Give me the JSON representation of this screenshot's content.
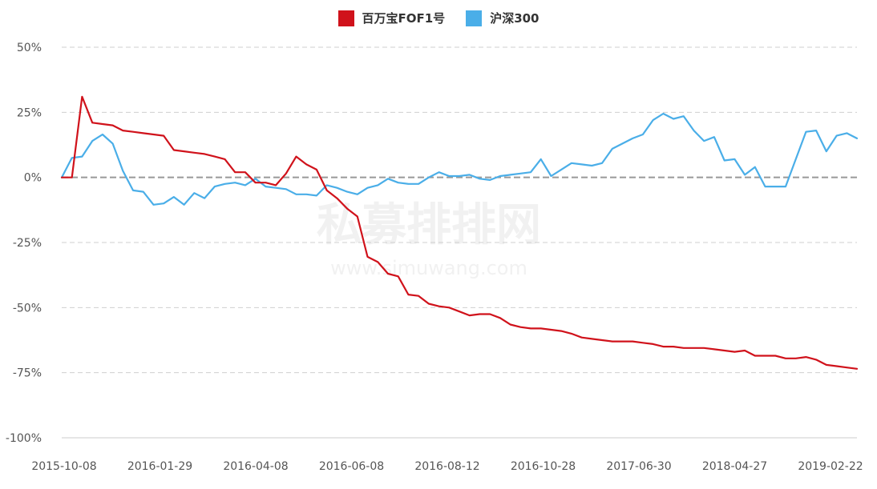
{
  "chart_data": {
    "type": "line",
    "title": "",
    "xlabel": "",
    "ylabel": "",
    "ylim": [
      -100,
      50
    ],
    "y_ticks": [
      50,
      25,
      0,
      -25,
      -50,
      -75,
      -100
    ],
    "y_tick_labels": [
      "50%",
      "25%",
      "0%",
      "-25%",
      "-50%",
      "-75%",
      "-100%"
    ],
    "x_tick_labels": [
      "2015-10-08",
      "2016-01-29",
      "2016-04-08",
      "2016-06-08",
      "2016-08-12",
      "2016-10-28",
      "2017-06-30",
      "2018-04-27",
      "2019-02-22"
    ],
    "legend_position": "top-center",
    "grid": "horizontal dashed",
    "series": [
      {
        "name": "百万宝FOF1号",
        "color": "#d0121b",
        "values": [
          0,
          0,
          31,
          21,
          20.5,
          20,
          18,
          17.5,
          17,
          16.5,
          16,
          10.5,
          10,
          9.5,
          9,
          8,
          7,
          2,
          2,
          -2,
          -2,
          -3,
          1.5,
          8,
          5,
          3,
          -5,
          -8,
          -12,
          -15,
          -30.5,
          -32.5,
          -37,
          -38,
          -45,
          -45.5,
          -48.5,
          -49.5,
          -50,
          -51.5,
          -53,
          -52.5,
          -52.5,
          -54,
          -56.5,
          -57.5,
          -58,
          -58,
          -58.5,
          -59,
          -60,
          -61.5,
          -62,
          -62.5,
          -63,
          -63,
          -63,
          -63.5,
          -64,
          -65,
          -65,
          -65.5,
          -65.5,
          -65.5,
          -66,
          -66.5,
          -67,
          -66.5,
          -68.5,
          -68.5,
          -68.5,
          -69.5,
          -69.5,
          -69,
          -70,
          -72,
          -72.5,
          -73,
          -73.5
        ]
      },
      {
        "name": "沪深300",
        "color": "#4aaee8",
        "values": [
          0,
          7.5,
          8,
          14,
          16.5,
          13,
          2.5,
          -5,
          -5.5,
          -10.5,
          -10,
          -7.5,
          -10.5,
          -6,
          -8,
          -3.5,
          -2.5,
          -2,
          -3,
          -0.5,
          -3.5,
          -4,
          -4.5,
          -6.5,
          -6.5,
          -7,
          -3,
          -4,
          -5.5,
          -6.5,
          -4,
          -3,
          -0.5,
          -2,
          -2.5,
          -2.5,
          0,
          2,
          0.5,
          0.5,
          1,
          -0.5,
          -1,
          0.5,
          1,
          1.5,
          2,
          7,
          0.5,
          3,
          5.5,
          5,
          4.5,
          5.5,
          11,
          13,
          15,
          16.5,
          22,
          24.5,
          22.5,
          23.5,
          18,
          14,
          15.5,
          6.5,
          7,
          1,
          4,
          -3.5,
          -3.5,
          -3.5,
          7,
          17.5,
          18,
          10,
          16,
          17,
          15
        ]
      }
    ],
    "watermark_text": "私募排排网",
    "watermark_url": "www.simuwang.com"
  }
}
